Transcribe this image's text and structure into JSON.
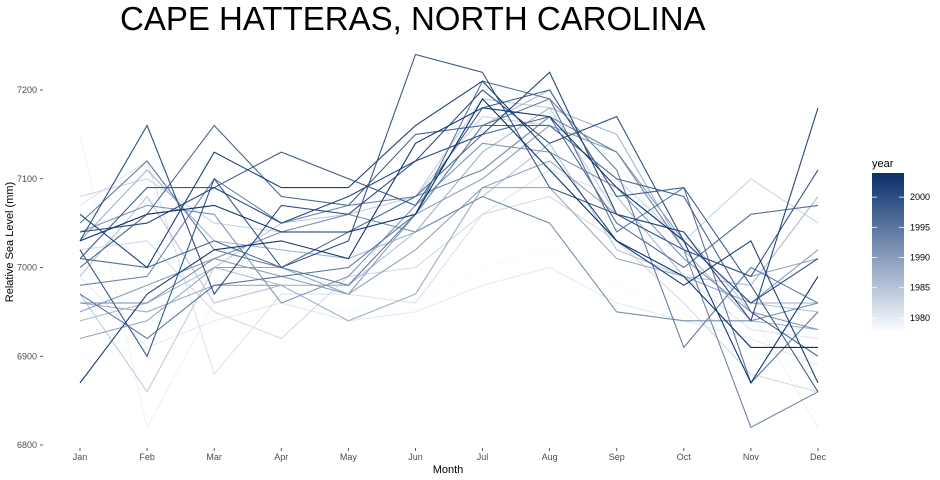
{
  "chart_data": {
    "type": "line",
    "title": "CAPE HATTERAS, NORTH CAROLINA",
    "xlabel": "Month",
    "ylabel": "Relative Sea Level (mm)",
    "categories": [
      "Jan",
      "Feb",
      "Mar",
      "Apr",
      "May",
      "Jun",
      "Jul",
      "Aug",
      "Sep",
      "Oct",
      "Nov",
      "Dec"
    ],
    "ylim": [
      6800,
      7240
    ],
    "yticks": [
      6800,
      6900,
      7000,
      7100,
      7200
    ],
    "grid": false,
    "legend": {
      "title": "year",
      "position": "right",
      "range": [
        1978,
        2004
      ],
      "ticks": [
        1980,
        1985,
        1990,
        1995,
        2000
      ],
      "color_low": "#f7fbff",
      "color_high": "#08306b"
    },
    "series": [
      {
        "year": 1978,
        "values": [
          6900,
          6910,
          6940,
          6960,
          6950,
          6960,
          7000,
          7020,
          6980,
          6950,
          6900,
          6880
        ]
      },
      {
        "year": 1979,
        "values": [
          7150,
          6820,
          6960,
          6990,
          6980,
          7080,
          7140,
          7170,
          7120,
          7010,
          6950,
          6820
        ]
      },
      {
        "year": 1980,
        "values": [
          6990,
          6910,
          6940,
          6960,
          6940,
          6950,
          6980,
          7000,
          6960,
          6940,
          6920,
          6890
        ]
      },
      {
        "year": 1981,
        "values": [
          7070,
          7120,
          6880,
          6970,
          6970,
          6960,
          7060,
          7110,
          7080,
          6990,
          6930,
          6920
        ]
      },
      {
        "year": 1982,
        "values": [
          7020,
          7030,
          6950,
          6920,
          6990,
          7000,
          7060,
          7080,
          7030,
          6960,
          6880,
          6860
        ]
      },
      {
        "year": 1983,
        "values": [
          7080,
          7100,
          7050,
          7040,
          7040,
          7080,
          7170,
          7160,
          7100,
          7030,
          7100,
          7050
        ]
      },
      {
        "year": 1984,
        "values": [
          6970,
          6860,
          7000,
          7050,
          7060,
          7080,
          7190,
          7180,
          7060,
          7040,
          6950,
          6900
        ]
      },
      {
        "year": 1985,
        "values": [
          6990,
          7080,
          6960,
          6980,
          6980,
          7040,
          7080,
          7140,
          7020,
          6990,
          6960,
          6950
        ]
      },
      {
        "year": 1986,
        "values": [
          6940,
          6960,
          7000,
          6980,
          6980,
          7060,
          7160,
          7200,
          7080,
          6990,
          6980,
          7080
        ]
      },
      {
        "year": 1987,
        "values": [
          7030,
          7110,
          7030,
          7020,
          7010,
          7040,
          7130,
          7180,
          7150,
          7020,
          6940,
          6930
        ]
      },
      {
        "year": 1988,
        "values": [
          6960,
          6950,
          6980,
          6980,
          6940,
          6970,
          7090,
          7090,
          7010,
          6990,
          6960,
          6960
        ]
      },
      {
        "year": 1989,
        "values": [
          6920,
          6940,
          7000,
          7000,
          6970,
          7020,
          7090,
          7120,
          7060,
          7020,
          6990,
          7010
        ]
      },
      {
        "year": 1990,
        "values": [
          6950,
          6980,
          7010,
          6990,
          6970,
          7060,
          7100,
          7160,
          7130,
          7030,
          6960,
          7020
        ]
      },
      {
        "year": 1991,
        "values": [
          7040,
          7070,
          7060,
          6960,
          6990,
          7070,
          7140,
          7130,
          7090,
          7010,
          6950,
          6930
        ]
      },
      {
        "year": 1992,
        "values": [
          6960,
          6960,
          7010,
          7040,
          7060,
          7040,
          7080,
          7050,
          6950,
          6940,
          6940,
          6960
        ]
      },
      {
        "year": 1993,
        "values": [
          6980,
          6990,
          7100,
          7050,
          7070,
          7080,
          7110,
          7170,
          7130,
          7020,
          6820,
          6860
        ]
      },
      {
        "year": 1994,
        "values": [
          7050,
          7120,
          7020,
          7000,
          6980,
          7060,
          7160,
          7190,
          7110,
          6910,
          7000,
          6960
        ]
      },
      {
        "year": 1995,
        "values": [
          6970,
          6920,
          6980,
          6990,
          7000,
          7060,
          7210,
          7190,
          7040,
          7090,
          6870,
          6950
        ]
      },
      {
        "year": 1996,
        "values": [
          7010,
          7000,
          7030,
          7000,
          7040,
          7080,
          7150,
          7170,
          7050,
          7000,
          7060,
          7070
        ]
      },
      {
        "year": 1997,
        "values": [
          7000,
          7060,
          7160,
          7080,
          7070,
          7150,
          7160,
          7160,
          7100,
          7080,
          6950,
          6900
        ]
      },
      {
        "year": 1998,
        "values": [
          7010,
          7090,
          7090,
          7130,
          7100,
          7070,
          7180,
          7200,
          7080,
          7090,
          6980,
          6860
        ]
      },
      {
        "year": 1999,
        "values": [
          7020,
          6900,
          7100,
          7000,
          7030,
          7240,
          7220,
          7090,
          7060,
          7020,
          6990,
          7110
        ]
      },
      {
        "year": 2000,
        "values": [
          7030,
          7160,
          6970,
          7070,
          7060,
          7120,
          7200,
          7140,
          7170,
          7030,
          6960,
          7010
        ]
      },
      {
        "year": 2001,
        "values": [
          7040,
          7050,
          7090,
          7050,
          7080,
          7120,
          7150,
          7220,
          7060,
          7040,
          6940,
          7180
        ]
      },
      {
        "year": 2002,
        "values": [
          7060,
          7000,
          7130,
          7090,
          7090,
          7160,
          7210,
          7130,
          7030,
          6980,
          7030,
          6870
        ]
      },
      {
        "year": 2003,
        "values": [
          6870,
          6970,
          7020,
          7030,
          7010,
          7140,
          7180,
          7170,
          7090,
          7030,
          6870,
          6990
        ]
      },
      {
        "year": 2004,
        "values": [
          7030,
          7060,
          7070,
          7040,
          7040,
          7060,
          7190,
          7110,
          7030,
          6990,
          6910,
          6910
        ]
      }
    ]
  }
}
